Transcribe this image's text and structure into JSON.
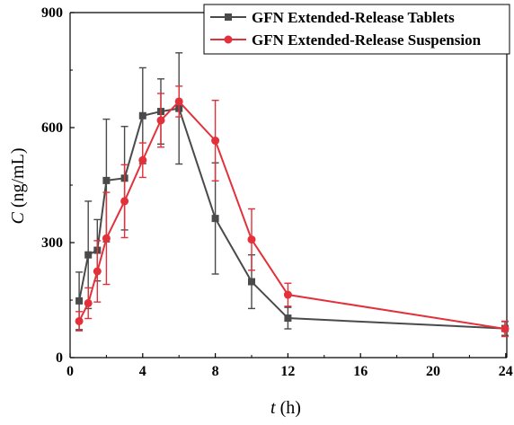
{
  "chart_data": {
    "type": "line",
    "xlabel_var": "t",
    "xlabel_unit": " (h)",
    "ylabel_var": "C",
    "ylabel_unit": " (ng/mL)",
    "x_ticks": [
      0,
      4,
      8,
      12,
      16,
      20,
      24
    ],
    "y_ticks": [
      0,
      300,
      600,
      900
    ],
    "x_tick_labels": [
      "0",
      "4",
      "8",
      "12",
      "16",
      "20",
      "24"
    ],
    "y_tick_labels": [
      "0",
      "300",
      "600",
      "900"
    ],
    "ylim": [
      0,
      900
    ],
    "x_axis_break": "between 12 and 24; 12 to 24 drawn in the space of 12 to 16",
    "legend_position": "top-right",
    "series": [
      {
        "name": "GFN Extended-Release Tablets",
        "color": "#4a4a4a",
        "marker": "square",
        "x": [
          0.5,
          1,
          1.5,
          2,
          3,
          4,
          5,
          6,
          8,
          10,
          12,
          24
        ],
        "y": [
          148,
          268,
          280,
          462,
          468,
          631,
          642,
          650,
          363,
          198,
          103,
          76
        ],
        "err": [
          75,
          140,
          80,
          160,
          135,
          125,
          85,
          145,
          145,
          70,
          28,
          18
        ]
      },
      {
        "name": "GFN Extended-Release Suspension",
        "color": "#e2313a",
        "marker": "circle",
        "x": [
          0.5,
          1,
          1.5,
          2,
          3,
          4,
          5,
          6,
          8,
          10,
          12,
          24
        ],
        "y": [
          95,
          142,
          225,
          311,
          408,
          515,
          619,
          668,
          566,
          308,
          164,
          75
        ],
        "err": [
          25,
          40,
          80,
          120,
          95,
          45,
          70,
          40,
          105,
          80,
          30,
          20
        ]
      }
    ]
  }
}
